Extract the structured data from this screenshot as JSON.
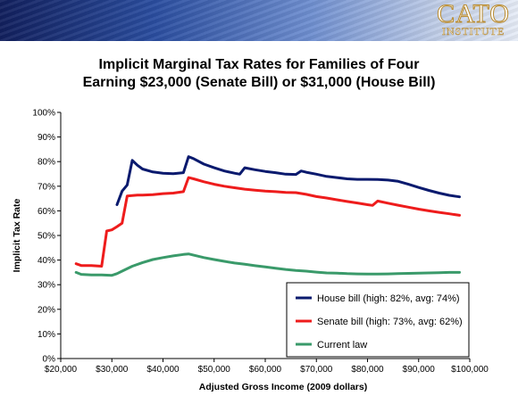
{
  "logo": {
    "main": "CATO",
    "sub": "INSTITUTE"
  },
  "colors": {
    "house": "#0a1a6e",
    "senate": "#ee1c1c",
    "current": "#3a9a6a"
  },
  "chart_data": {
    "type": "line",
    "title": [
      "Implicit Marginal Tax Rates for Families of Four",
      "Earning $23,000 (Senate Bill) or $31,000 (House Bill)"
    ],
    "xlabel": "Adjusted Gross Income (2009 dollars)",
    "ylabel": "Implicit Tax Rate",
    "xlim": [
      20000,
      100000
    ],
    "ylim": [
      0,
      100
    ],
    "x_ticks": [
      20000,
      30000,
      40000,
      50000,
      60000,
      70000,
      80000,
      90000,
      100000
    ],
    "x_tick_labels": [
      "$20,000",
      "$30,000",
      "$40,000",
      "$50,000",
      "$60,000",
      "$70,000",
      "$80,000",
      "$90,000",
      "$100,000"
    ],
    "y_ticks": [
      0,
      10,
      20,
      30,
      40,
      50,
      60,
      70,
      80,
      90,
      100
    ],
    "y_tick_labels": [
      "0%",
      "10%",
      "20%",
      "30%",
      "40%",
      "50%",
      "60%",
      "70%",
      "80%",
      "90%",
      "100%"
    ],
    "grid": false,
    "legend_position": "bottom-right",
    "series": [
      {
        "name": "House bill (high: 82%, avg: 74%)",
        "color_key": "house",
        "x": [
          31000,
          32000,
          33000,
          34000,
          35000,
          36000,
          38000,
          40000,
          42000,
          44000,
          45000,
          46000,
          48000,
          50000,
          52000,
          54000,
          55000,
          56000,
          58000,
          60000,
          62000,
          64000,
          66000,
          67000,
          68000,
          70000,
          72000,
          74000,
          76000,
          78000,
          80000,
          82000,
          84000,
          86000,
          88000,
          90000,
          92000,
          94000,
          96000,
          98000
        ],
        "values": [
          62.5,
          68,
          70.5,
          80.5,
          78.5,
          77,
          75.8,
          75.3,
          75.1,
          75.5,
          82,
          81.2,
          79,
          77.5,
          76.2,
          75.3,
          74.9,
          77.5,
          76.7,
          76,
          75.5,
          74.9,
          74.8,
          76.2,
          75.7,
          74.9,
          74,
          73.5,
          73,
          72.8,
          72.8,
          72.7,
          72.5,
          72,
          70.8,
          69.5,
          68.3,
          67.2,
          66.3,
          65.7
        ]
      },
      {
        "name": "Senate bill (high: 73%, avg: 62%)",
        "color_key": "senate",
        "x": [
          23000,
          24000,
          26000,
          28000,
          29000,
          30000,
          31000,
          32000,
          33000,
          34000,
          35000,
          36000,
          38000,
          40000,
          42000,
          44000,
          45000,
          46000,
          48000,
          50000,
          52000,
          54000,
          56000,
          58000,
          60000,
          62000,
          64000,
          66000,
          68000,
          70000,
          72000,
          74000,
          76000,
          78000,
          80000,
          81000,
          82000,
          84000,
          86000,
          88000,
          90000,
          92000,
          94000,
          96000,
          98000
        ],
        "values": [
          38.5,
          37.8,
          37.8,
          37.5,
          51.8,
          52.3,
          53.6,
          55,
          66,
          66.2,
          66.4,
          66.4,
          66.6,
          67,
          67.2,
          67.8,
          73.5,
          73,
          71.8,
          70.8,
          70,
          69.4,
          68.8,
          68.4,
          68,
          67.8,
          67.5,
          67.4,
          66.7,
          65.8,
          65.2,
          64.5,
          63.8,
          63.2,
          62.5,
          62.2,
          64,
          63.1,
          62.3,
          61.5,
          60.7,
          60,
          59.4,
          58.8,
          58.2
        ]
      },
      {
        "name": "Current law",
        "color_key": "current",
        "x": [
          23000,
          24000,
          26000,
          28000,
          30000,
          31000,
          32000,
          34000,
          36000,
          38000,
          40000,
          42000,
          44000,
          45000,
          46000,
          48000,
          50000,
          52000,
          54000,
          56000,
          58000,
          60000,
          62000,
          64000,
          66000,
          68000,
          70000,
          72000,
          74000,
          76000,
          78000,
          80000,
          82000,
          84000,
          86000,
          88000,
          90000,
          92000,
          94000,
          96000,
          98000
        ],
        "values": [
          35,
          34.2,
          34,
          34,
          33.8,
          34.5,
          35.5,
          37.5,
          39,
          40.2,
          41,
          41.7,
          42.3,
          42.5,
          42,
          41,
          40.2,
          39.5,
          38.8,
          38.3,
          37.7,
          37.2,
          36.7,
          36.2,
          35.8,
          35.5,
          35.1,
          34.8,
          34.7,
          34.5,
          34.4,
          34.3,
          34.3,
          34.4,
          34.5,
          34.6,
          34.7,
          34.8,
          34.9,
          35,
          35
        ]
      }
    ]
  }
}
